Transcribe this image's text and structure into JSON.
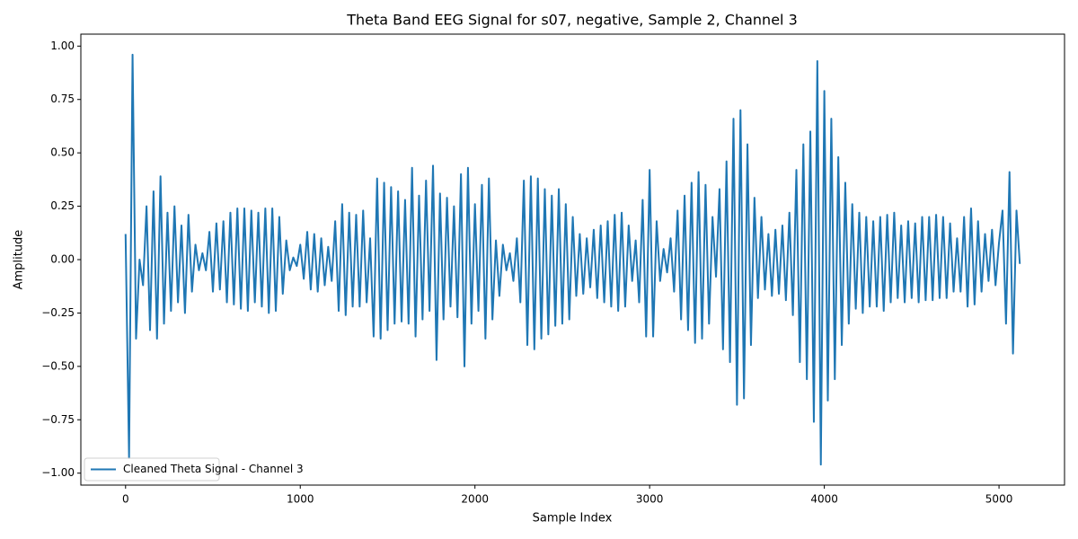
{
  "chart_data": {
    "type": "line",
    "title": "Theta Band EEG Signal for s07, negative, Sample 2, Channel 3",
    "x_label": "Sample Index",
    "y_label": "Amplitude",
    "x": [
      0,
      20,
      40,
      60,
      80,
      100,
      120,
      140,
      160,
      180,
      200,
      220,
      240,
      260,
      280,
      300,
      320,
      340,
      360,
      380,
      400,
      420,
      440,
      460,
      480,
      500,
      520,
      540,
      560,
      580,
      600,
      620,
      640,
      660,
      680,
      700,
      720,
      740,
      760,
      780,
      800,
      820,
      840,
      860,
      880,
      900,
      920,
      940,
      960,
      980,
      1000,
      1020,
      1040,
      1060,
      1080,
      1100,
      1120,
      1140,
      1160,
      1180,
      1200,
      1220,
      1240,
      1260,
      1280,
      1300,
      1320,
      1340,
      1360,
      1380,
      1400,
      1420,
      1440,
      1460,
      1480,
      1500,
      1520,
      1540,
      1560,
      1580,
      1600,
      1620,
      1640,
      1660,
      1680,
      1700,
      1720,
      1740,
      1760,
      1780,
      1800,
      1820,
      1840,
      1860,
      1880,
      1900,
      1920,
      1940,
      1960,
      1980,
      2000,
      2020,
      2040,
      2060,
      2080,
      2100,
      2120,
      2140,
      2160,
      2180,
      2200,
      2220,
      2240,
      2260,
      2280,
      2300,
      2320,
      2340,
      2360,
      2380,
      2400,
      2420,
      2440,
      2460,
      2480,
      2500,
      2520,
      2540,
      2560,
      2580,
      2600,
      2620,
      2640,
      2660,
      2680,
      2700,
      2720,
      2740,
      2760,
      2780,
      2800,
      2820,
      2840,
      2860,
      2880,
      2900,
      2920,
      2940,
      2960,
      2980,
      3000,
      3020,
      3040,
      3060,
      3080,
      3100,
      3120,
      3140,
      3160,
      3180,
      3200,
      3220,
      3240,
      3260,
      3280,
      3300,
      3320,
      3340,
      3360,
      3380,
      3400,
      3420,
      3440,
      3460,
      3480,
      3500,
      3520,
      3540,
      3560,
      3580,
      3600,
      3620,
      3640,
      3660,
      3680,
      3700,
      3720,
      3740,
      3760,
      3780,
      3800,
      3820,
      3840,
      3860,
      3880,
      3900,
      3920,
      3940,
      3960,
      3980,
      4000,
      4020,
      4040,
      4060,
      4080,
      4100,
      4120,
      4140,
      4160,
      4180,
      4200,
      4220,
      4240,
      4260,
      4280,
      4300,
      4320,
      4340,
      4360,
      4380,
      4400,
      4420,
      4440,
      4460,
      4480,
      4500,
      4520,
      4540,
      4560,
      4580,
      4600,
      4620,
      4640,
      4660,
      4680,
      4700,
      4720,
      4740,
      4760,
      4780,
      4800,
      4820,
      4840,
      4860,
      4880,
      4900,
      4920,
      4940,
      4960,
      4980,
      5000,
      5020,
      5040,
      5060,
      5080,
      5100,
      5119
    ],
    "series": [
      {
        "name": "Cleaned Theta Signal - Channel 3",
        "color": "#1f77b4",
        "values": [
          0.12,
          -0.93,
          0.96,
          -0.37,
          0,
          -0.12,
          0.25,
          -0.33,
          0.32,
          -0.37,
          0.39,
          -0.3,
          0.22,
          -0.24,
          0.25,
          -0.2,
          0.16,
          -0.25,
          0.21,
          -0.15,
          0.07,
          -0.05,
          0.03,
          -0.05,
          0.13,
          -0.15,
          0.17,
          -0.14,
          0.18,
          -0.2,
          0.22,
          -0.21,
          0.24,
          -0.23,
          0.24,
          -0.24,
          0.23,
          -0.2,
          0.22,
          -0.22,
          0.24,
          -0.25,
          0.24,
          -0.24,
          0.2,
          -0.16,
          0.09,
          -0.05,
          0.01,
          -0.03,
          0.07,
          -0.09,
          0.13,
          -0.14,
          0.12,
          -0.15,
          0.1,
          -0.12,
          0.06,
          -0.1,
          0.18,
          -0.24,
          0.26,
          -0.26,
          0.22,
          -0.22,
          0.21,
          -0.22,
          0.23,
          -0.2,
          0.1,
          -0.36,
          0.38,
          -0.37,
          0.36,
          -0.33,
          0.34,
          -0.3,
          0.32,
          -0.29,
          0.28,
          -0.3,
          0.43,
          -0.36,
          0.3,
          -0.28,
          0.37,
          -0.24,
          0.44,
          -0.47,
          0.31,
          -0.28,
          0.29,
          -0.22,
          0.25,
          -0.27,
          0.4,
          -0.5,
          0.43,
          -0.3,
          0.26,
          -0.24,
          0.35,
          -0.37,
          0.38,
          -0.28,
          0.09,
          -0.17,
          0.07,
          -0.05,
          0.03,
          -0.1,
          0.1,
          -0.2,
          0.37,
          -0.4,
          0.39,
          -0.42,
          0.38,
          -0.37,
          0.33,
          -0.35,
          0.3,
          -0.31,
          0.33,
          -0.3,
          0.26,
          -0.28,
          0.2,
          -0.17,
          0.12,
          -0.16,
          0.1,
          -0.13,
          0.14,
          -0.18,
          0.16,
          -0.2,
          0.18,
          -0.22,
          0.21,
          -0.24,
          0.22,
          -0.22,
          0.16,
          -0.1,
          0.09,
          -0.2,
          0.28,
          -0.36,
          0.42,
          -0.36,
          0.18,
          -0.1,
          0.05,
          -0.06,
          0.1,
          -0.15,
          0.23,
          -0.28,
          0.3,
          -0.33,
          0.36,
          -0.39,
          0.41,
          -0.37,
          0.35,
          -0.3,
          0.2,
          -0.08,
          0.33,
          -0.42,
          0.46,
          -0.48,
          0.66,
          -0.68,
          0.7,
          -0.65,
          0.54,
          -0.4,
          0.29,
          -0.18,
          0.2,
          -0.14,
          0.12,
          -0.17,
          0.14,
          -0.16,
          0.16,
          -0.19,
          0.22,
          -0.26,
          0.42,
          -0.48,
          0.54,
          -0.56,
          0.6,
          -0.76,
          0.93,
          -0.96,
          0.79,
          -0.66,
          0.66,
          -0.56,
          0.48,
          -0.4,
          0.36,
          -0.3,
          0.26,
          -0.23,
          0.22,
          -0.25,
          0.2,
          -0.22,
          0.18,
          -0.22,
          0.2,
          -0.24,
          0.21,
          -0.2,
          0.22,
          -0.18,
          0.16,
          -0.2,
          0.18,
          -0.18,
          0.17,
          -0.2,
          0.2,
          -0.19,
          0.2,
          -0.19,
          0.21,
          -0.18,
          0.2,
          -0.18,
          0.17,
          -0.15,
          0.1,
          -0.15,
          0.2,
          -0.22,
          0.24,
          -0.21,
          0.18,
          -0.15,
          0.12,
          -0.1,
          0.14,
          -0.12,
          0.08,
          0.23,
          -0.3,
          0.41,
          -0.44,
          0.23,
          -0.02
        ]
      }
    ],
    "xlim": [
      -256,
      5375
    ],
    "ylim": [
      -1.056,
      1.056
    ],
    "xticks": [
      0,
      1000,
      2000,
      3000,
      4000,
      5000
    ],
    "yticks": [
      {
        "value": -1,
        "label": "−1.00"
      },
      {
        "value": -0.75,
        "label": "−0.75"
      },
      {
        "value": -0.5,
        "label": "−0.50"
      },
      {
        "value": -0.25,
        "label": "−0.25"
      },
      {
        "value": 0,
        "label": "0.00"
      },
      {
        "value": 0.25,
        "label": "0.25"
      },
      {
        "value": 0.5,
        "label": "0.50"
      },
      {
        "value": 0.75,
        "label": "0.75"
      },
      {
        "value": 1,
        "label": "1.00"
      }
    ],
    "grid": false,
    "legend": "lower left"
  }
}
